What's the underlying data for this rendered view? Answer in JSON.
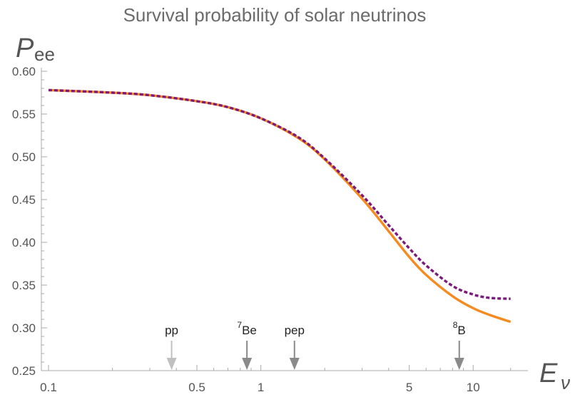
{
  "chart_data": {
    "type": "line",
    "title": "Survival probability of solar neutrinos",
    "ylabel": {
      "main": "P",
      "sub": "ee"
    },
    "xlabel": {
      "main": "E",
      "sub": "ν"
    },
    "xscale": "log",
    "xlim": [
      0.1,
      16
    ],
    "ylim": [
      0.25,
      0.6
    ],
    "xticks": [
      {
        "value": 0.1,
        "label": "0.1"
      },
      {
        "value": 0.5,
        "label": "0.5"
      },
      {
        "value": 1,
        "label": "1"
      },
      {
        "value": 5,
        "label": "5"
      },
      {
        "value": 10,
        "label": "10"
      }
    ],
    "yticks": [
      {
        "value": 0.25,
        "label": "0.25"
      },
      {
        "value": 0.3,
        "label": "0.30"
      },
      {
        "value": 0.35,
        "label": "0.35"
      },
      {
        "value": 0.4,
        "label": "0.40"
      },
      {
        "value": 0.45,
        "label": "0.45"
      },
      {
        "value": 0.5,
        "label": "0.50"
      },
      {
        "value": 0.55,
        "label": "0.55"
      },
      {
        "value": 0.6,
        "label": "0.60"
      }
    ],
    "grid": false,
    "series": [
      {
        "color": "#f58a1f",
        "style": "solid",
        "x": [
          0.1,
          0.2,
          0.3,
          0.5,
          0.7,
          1.0,
          1.5,
          2.0,
          3.0,
          4.0,
          5.0,
          6.0,
          8.0,
          10.0,
          12.0,
          15.0
        ],
        "y": [
          0.578,
          0.575,
          0.572,
          0.565,
          0.558,
          0.545,
          0.522,
          0.497,
          0.451,
          0.413,
          0.383,
          0.362,
          0.337,
          0.323,
          0.315,
          0.307
        ]
      },
      {
        "color": "#7b1a7b",
        "style": "dashed",
        "x": [
          0.1,
          0.2,
          0.3,
          0.5,
          0.7,
          1.0,
          1.5,
          2.0,
          3.0,
          4.0,
          5.0,
          6.0,
          8.0,
          10.0,
          12.0,
          15.0
        ],
        "y": [
          0.578,
          0.575,
          0.572,
          0.565,
          0.558,
          0.545,
          0.523,
          0.498,
          0.455,
          0.42,
          0.393,
          0.373,
          0.349,
          0.339,
          0.335,
          0.334
        ]
      }
    ],
    "annotations": [
      {
        "label": "pp",
        "sup": "",
        "x": 0.38,
        "color": "#c0c0c0"
      },
      {
        "label": "Be",
        "sup": "7",
        "x": 0.86,
        "color": "#8a8a8a"
      },
      {
        "label": "pep",
        "sup": "",
        "x": 1.44,
        "color": "#8a8a8a"
      },
      {
        "label": "B",
        "sup": "8",
        "x": 8.6,
        "color": "#8a8a8a"
      }
    ]
  }
}
